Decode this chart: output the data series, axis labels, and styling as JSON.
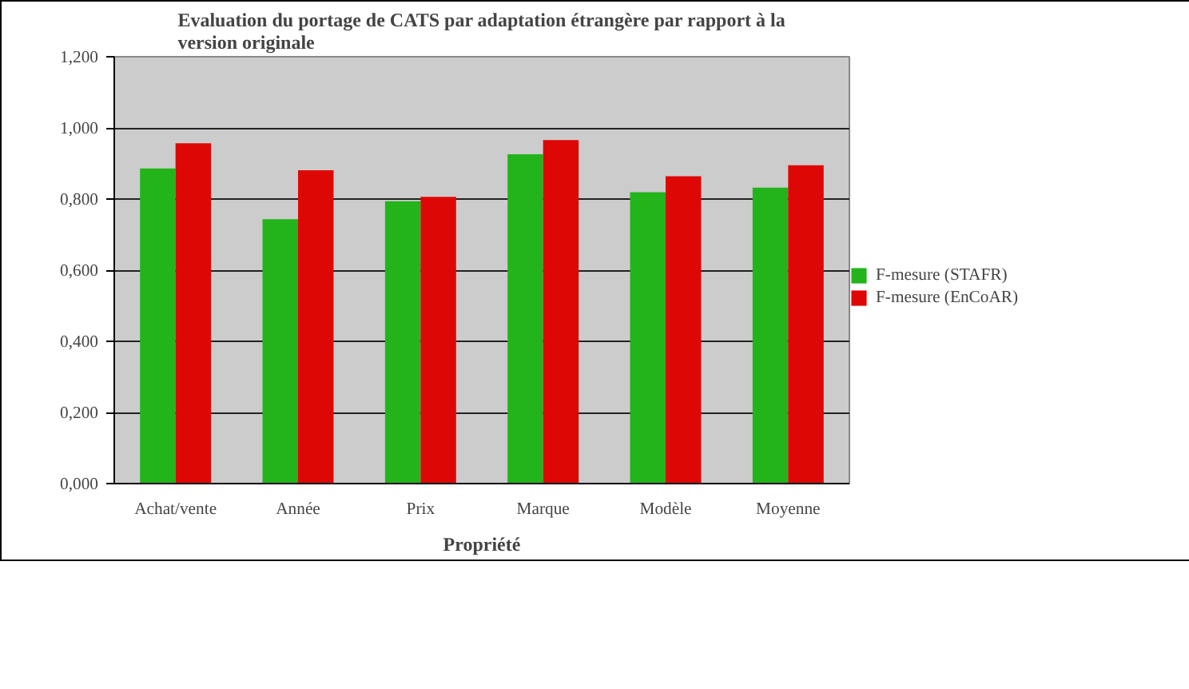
{
  "chart_data": {
    "type": "bar",
    "title": "Evaluation du portage de CATS par adaptation étrangère par rapport à la version originale",
    "xlabel": "Propriété",
    "categories": [
      "Achat/vente",
      "Année",
      "Prix",
      "Marque",
      "Modèle",
      "Moyenne"
    ],
    "series": [
      {
        "name": "F-mesure (STAFR)",
        "color": "#22b41a",
        "values": [
          0.886,
          0.743,
          0.794,
          0.926,
          0.819,
          0.832
        ]
      },
      {
        "name": "F-mesure (EnCoAR)",
        "color": "#dd0806",
        "values": [
          0.957,
          0.881,
          0.806,
          0.966,
          0.864,
          0.895
        ]
      }
    ],
    "ylim": [
      0,
      1.2
    ],
    "yticks": [
      {
        "value": 0,
        "label": "0,000"
      },
      {
        "value": 0.2,
        "label": "0,200"
      },
      {
        "value": 0.4,
        "label": "0,400"
      },
      {
        "value": 0.6,
        "label": "0,600"
      },
      {
        "value": 0.8,
        "label": "0,800"
      },
      {
        "value": 1.0,
        "label": "1,000"
      },
      {
        "value": 1.2,
        "label": "1,200"
      }
    ],
    "grid": "y",
    "legend": "right"
  }
}
